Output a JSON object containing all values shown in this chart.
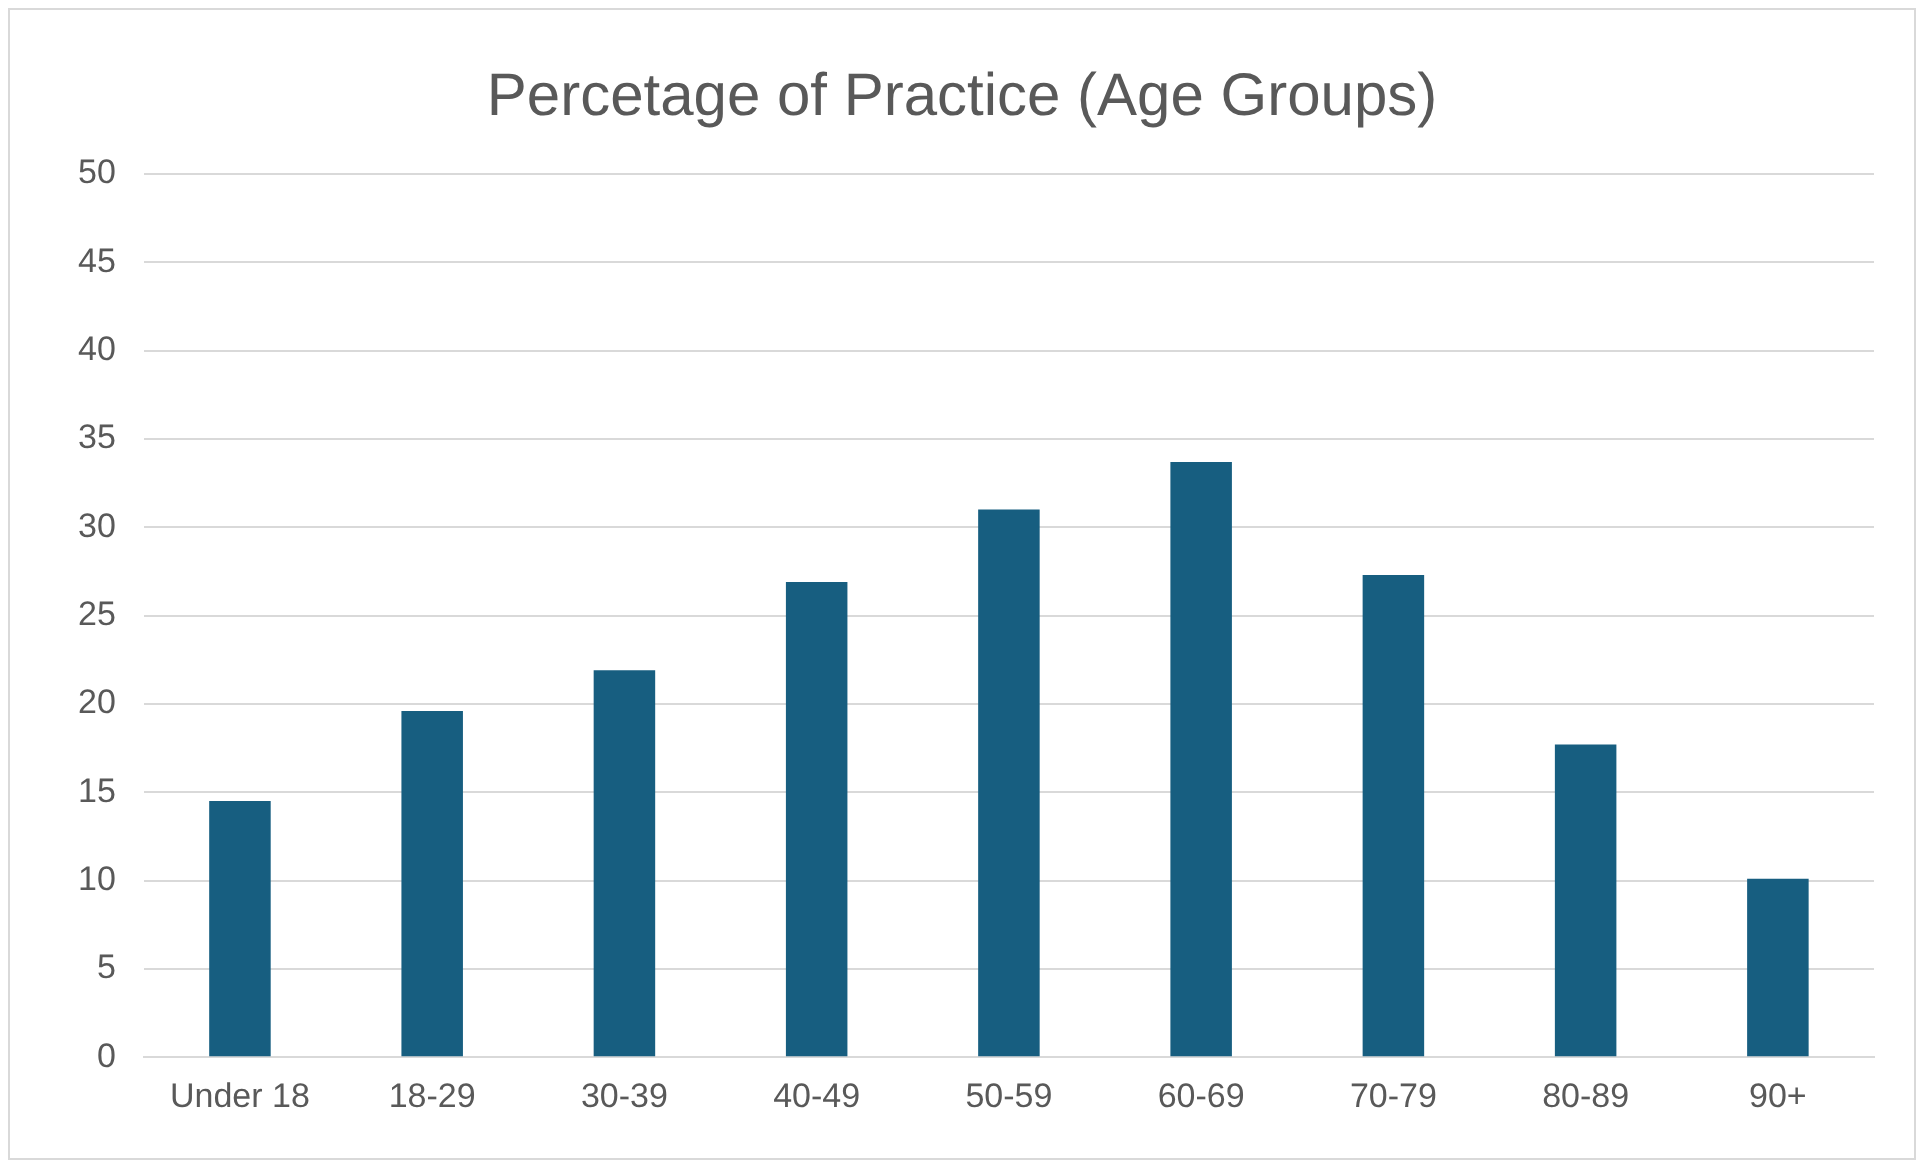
{
  "chart_data": {
    "type": "bar",
    "title": "Percetage of Practice (Age Groups)",
    "categories": [
      "Under 18",
      "18-29",
      "30-39",
      "40-49",
      "50-59",
      "60-69",
      "70-79",
      "80-89",
      "90+"
    ],
    "values": [
      14.5,
      19.6,
      21.9,
      26.9,
      31.0,
      33.7,
      27.3,
      17.7,
      10.1
    ],
    "color": "#175e80",
    "ylim": [
      0,
      50
    ],
    "yticks": [
      0,
      5,
      10,
      15,
      20,
      25,
      30,
      35,
      40,
      45,
      50
    ],
    "grid": "y",
    "legend": false
  }
}
